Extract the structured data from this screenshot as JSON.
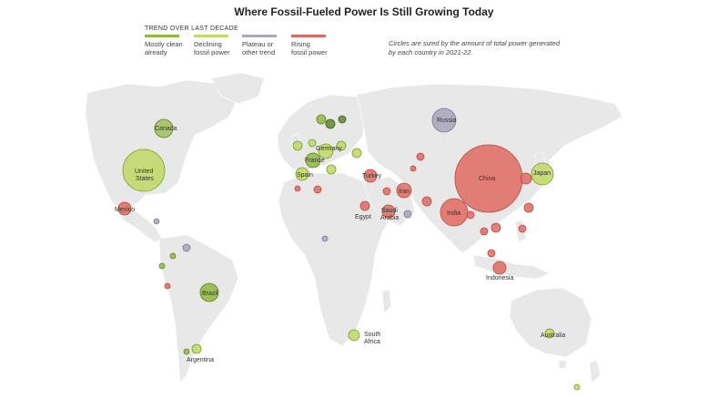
{
  "title": "Where Fossil-Fueled Power Is Still Growing Today",
  "legend": {
    "heading": "TREND OVER LAST DECADE",
    "items": [
      {
        "label1": "Mostly clean",
        "label2": "already",
        "color": "#8fb83f"
      },
      {
        "label1": "Declining",
        "label2": "fossil power",
        "color": "#c2d96b"
      },
      {
        "label1": "Plateau or",
        "label2": "other trend",
        "color": "#a9a9ba"
      },
      {
        "label1": "Rising",
        "label2": "fossil power",
        "color": "#df6a5f"
      }
    ]
  },
  "note": "Circles are sized by the amount of total power generated by each country in 2021-22.",
  "colors": {
    "mostly_clean": "#8fb83f",
    "declining": "#c2d96b",
    "plateau": "#a9a9ba",
    "rising": "#df6a5f",
    "land": "#e8e8e8"
  },
  "labels": {
    "canada": "Canada",
    "united_states_1": "United",
    "united_states_2": "States",
    "mexico": "Mexico",
    "brazil": "Brazil",
    "argentina": "Argentina",
    "spain": "Spain",
    "germany": "Germany",
    "france": "France",
    "turkey": "Turkey",
    "russia": "Russia",
    "iran": "Iran",
    "egypt": "Egypt",
    "saudi_arabia_1": "Saudi",
    "saudi_arabia_2": "Arabia",
    "india": "India",
    "china": "China",
    "japan": "Japan",
    "indonesia": "Indonesia",
    "south_africa_1": "South",
    "south_africa_2": "Africa",
    "australia": "Australia"
  }
}
